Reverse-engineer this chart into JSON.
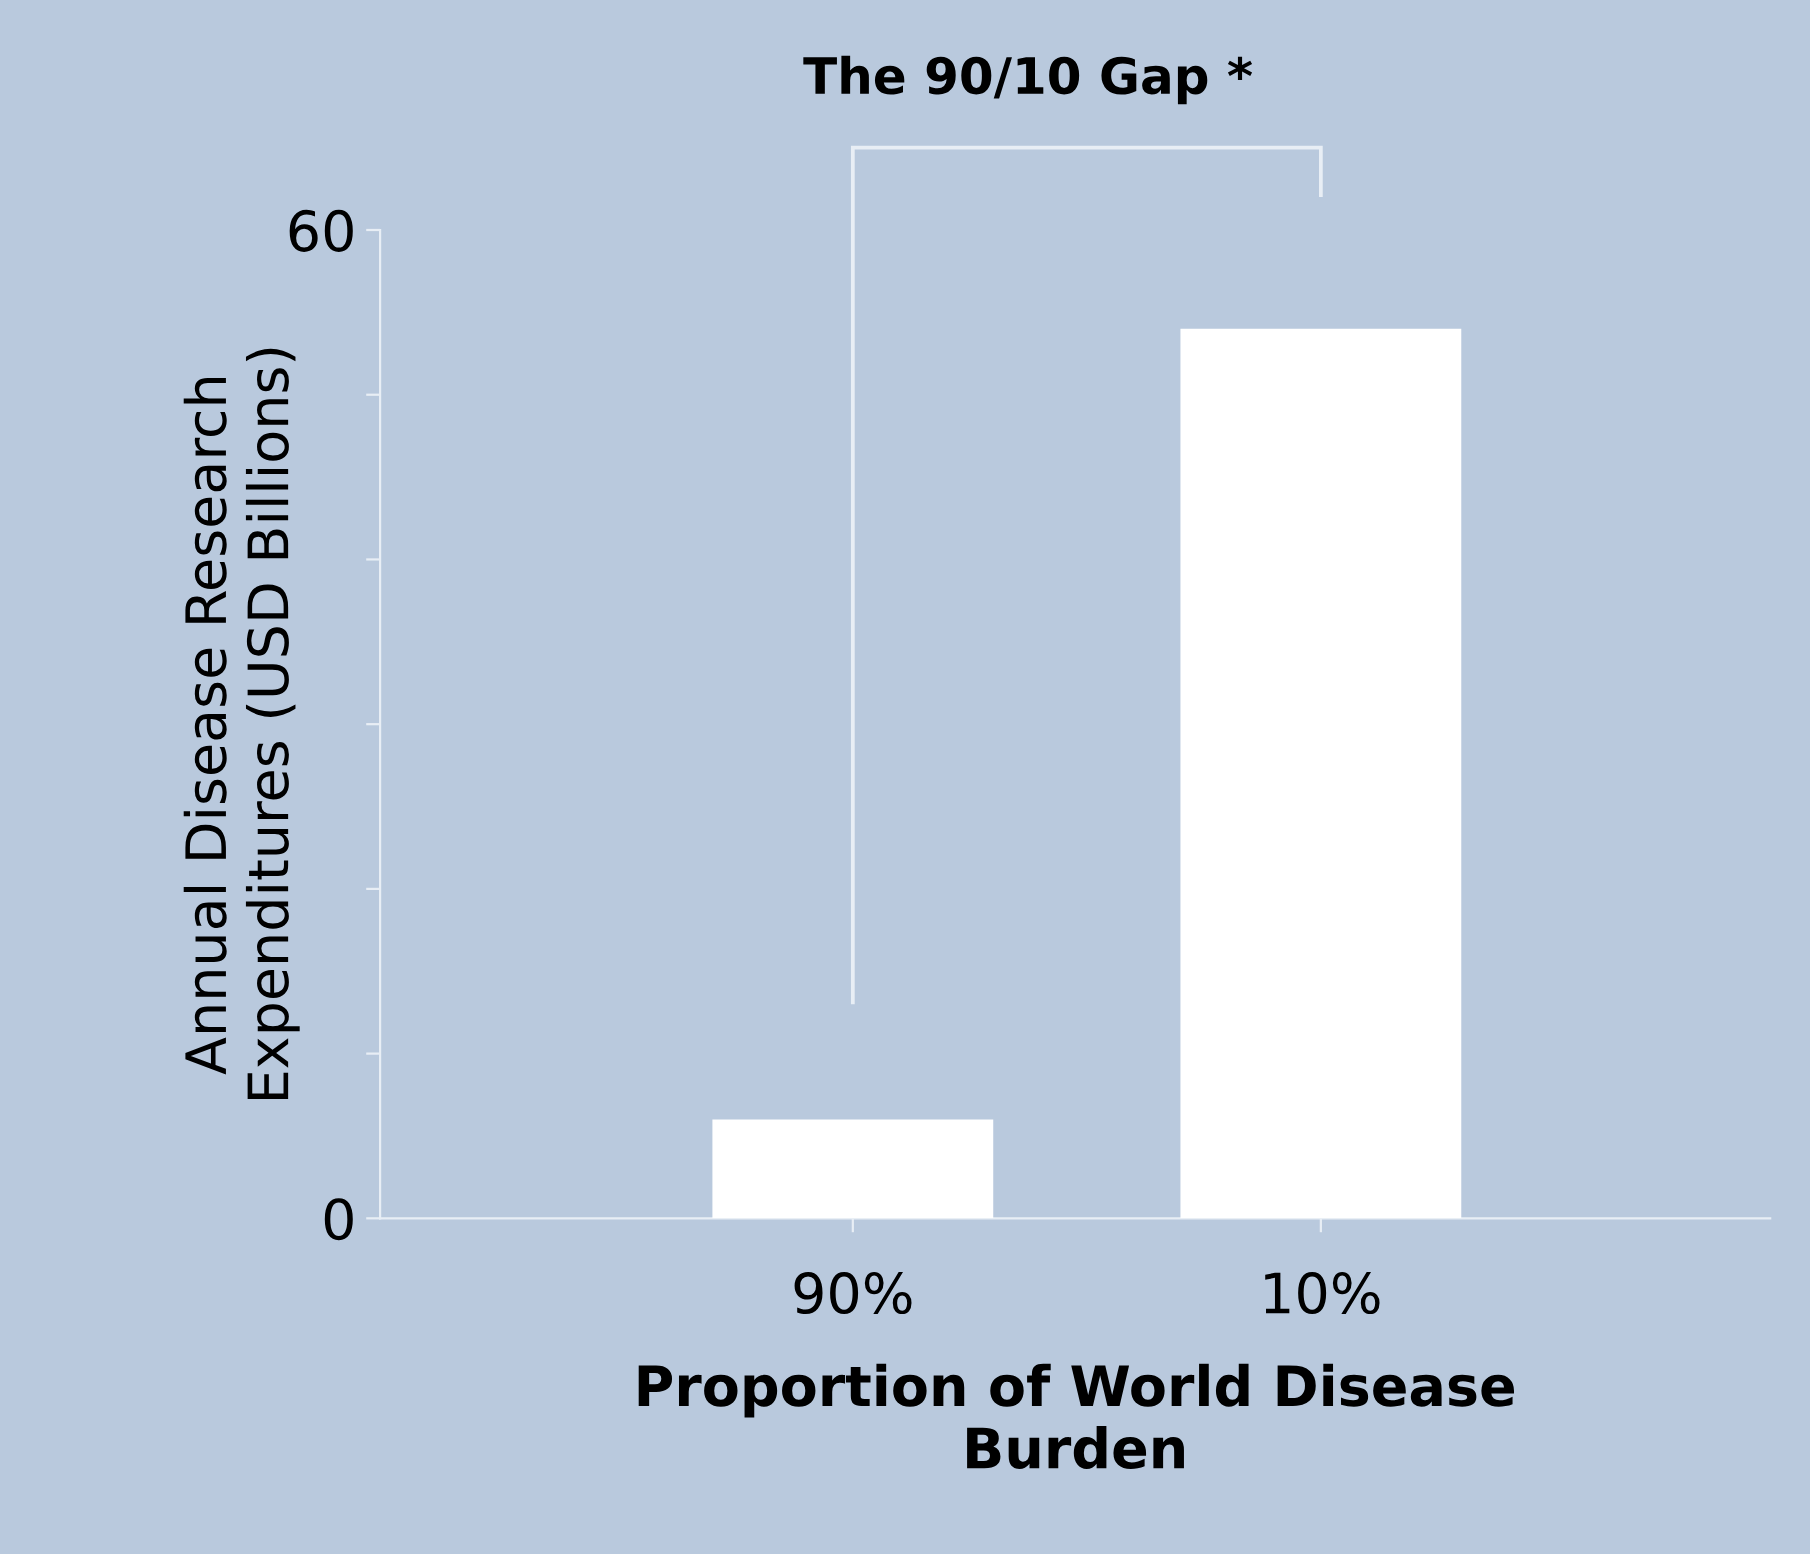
{
  "chart_data": {
    "type": "bar",
    "title": "The 90/10 Gap *",
    "xlabel": "Proportion of World Disease\nBurden",
    "ylabel": "Annual Disease Research\nExpenditures (USD Billions)",
    "categories": [
      "90%",
      "10%"
    ],
    "values": [
      6,
      54
    ],
    "color": "#ffffff",
    "ylim": [
      0,
      60
    ],
    "yticks": [
      0,
      {
        "value": 10,
        "label": null
      },
      {
        "value": 20,
        "label": null
      },
      {
        "value": 30,
        "label": null
      },
      {
        "value": 40,
        "label": null
      },
      {
        "value": 50,
        "label": null
      },
      60
    ],
    "grid": false
  }
}
